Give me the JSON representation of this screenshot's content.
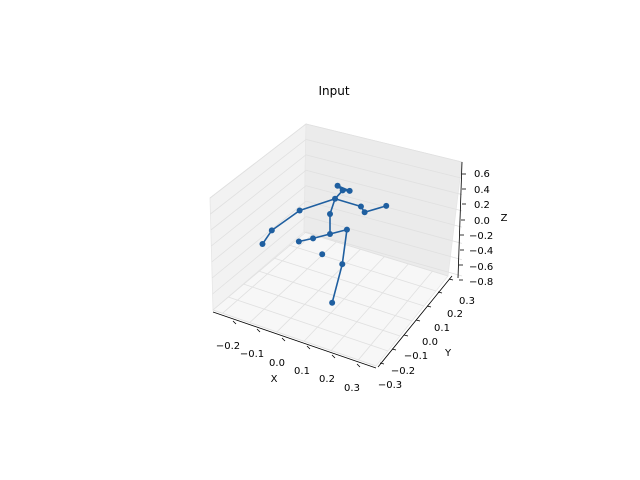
{
  "chart_data": {
    "type": "scatter",
    "title": "Input",
    "projection": "3d",
    "xlabel": "X",
    "ylabel": "Y",
    "zlabel": "Z",
    "xlim": [
      -0.25,
      0.35
    ],
    "ylim": [
      -0.33,
      0.33
    ],
    "zlim": [
      -0.85,
      0.75
    ],
    "xticks": [
      "−0.2",
      "−0.1",
      "0.0",
      "0.1",
      "0.2",
      "0.3"
    ],
    "yticks": [
      "−0.3",
      "−0.2",
      "−0.1",
      "0.0",
      "0.1",
      "0.2",
      "0.3"
    ],
    "zticks": [
      "0.6",
      "0.4",
      "0.2",
      "0.0",
      "−0.2",
      "−0.4",
      "−0.6",
      "−0.8"
    ],
    "grid": true,
    "series": [
      {
        "color": "#1f5fa0",
        "joints": [
          {
            "x": 0.0,
            "y": 0.0,
            "z": 0.0
          },
          {
            "x": 0.07,
            "y": 0.02,
            "z": -0.02
          },
          {
            "x": 0.03,
            "y": -0.12,
            "z": -0.35
          },
          {
            "x": -0.03,
            "y": -0.25,
            "z": -0.75
          },
          {
            "x": -0.07,
            "y": -0.02,
            "z": 0.02
          },
          {
            "x": -0.1,
            "y": 0.15,
            "z": -0.3
          },
          {
            "x": 0.0,
            "y": 0.2,
            "z": -0.7
          },
          {
            "x": 0.0,
            "y": 0.0,
            "z": 0.35
          },
          {
            "x": 0.02,
            "y": 0.0,
            "z": 0.6
          },
          {
            "x": 0.05,
            "y": 0.0,
            "z": 0.72
          },
          {
            "x": 0.03,
            "y": 0.0,
            "z": 0.82
          },
          {
            "x": -0.12,
            "y": 0.0,
            "z": 0.52
          },
          {
            "x": -0.23,
            "y": 0.0,
            "z": 0.27
          },
          {
            "x": -0.27,
            "y": -0.02,
            "z": 0.1
          },
          {
            "x": 0.13,
            "y": 0.05,
            "z": 0.28
          },
          {
            "x": 0.16,
            "y": 0.15,
            "z": -0.02
          },
          {
            "x": 0.25,
            "y": 0.18,
            "z": -0.04
          },
          {
            "x": 0.07,
            "y": -0.05,
            "z": 0.78
          }
        ],
        "bones": [
          [
            0,
            1
          ],
          [
            1,
            2
          ],
          [
            2,
            3
          ],
          [
            0,
            4
          ],
          [
            4,
            5
          ],
          [
            0,
            7
          ],
          [
            7,
            8
          ],
          [
            8,
            9
          ],
          [
            9,
            10
          ],
          [
            8,
            11
          ],
          [
            11,
            12
          ],
          [
            12,
            13
          ],
          [
            8,
            14
          ],
          [
            14,
            15
          ],
          [
            15,
            16
          ],
          [
            9,
            17
          ],
          [
            17,
            10
          ]
        ]
      }
    ]
  }
}
